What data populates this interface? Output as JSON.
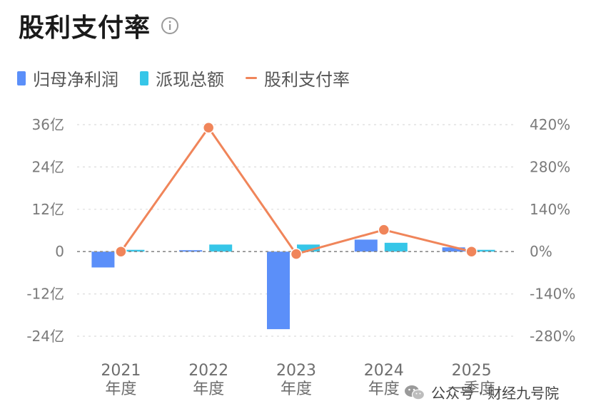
{
  "header": {
    "title": "股利支付率",
    "info_icon": "info-icon"
  },
  "legend": [
    {
      "label": "归母净利润",
      "color": "#5b8ff9",
      "shape": "bar"
    },
    {
      "label": "派现总额",
      "color": "#36c6e8",
      "shape": "bar"
    },
    {
      "label": "股利支付率",
      "color": "#f0855a",
      "shape": "line"
    }
  ],
  "chart_data": {
    "type": "bar",
    "categories": [
      "2021\n年度",
      "2022\n年度",
      "2023\n年度",
      "2024\n年度",
      "2025\n一季度"
    ],
    "series": [
      {
        "name": "归母净利润",
        "type": "bar",
        "axis": "left",
        "values": [
          -4.5,
          0.4,
          -22,
          3.4,
          1.2
        ]
      },
      {
        "name": "派现总额",
        "type": "bar",
        "axis": "left",
        "values": [
          0.5,
          2.0,
          2.0,
          2.5,
          0.5
        ]
      },
      {
        "name": "股利支付率",
        "type": "line",
        "axis": "right",
        "values": [
          0,
          410,
          -8,
          72,
          0
        ]
      }
    ],
    "y_left": {
      "ticks": [
        "36亿",
        "24亿",
        "12亿",
        "0",
        "-12亿",
        "-24亿"
      ],
      "tick_values": [
        36,
        24,
        12,
        0,
        -12,
        -24
      ],
      "range": [
        -24,
        36
      ]
    },
    "y_right": {
      "ticks": [
        "420%",
        "280%",
        "140%",
        "0%",
        "-140%",
        "-280%"
      ],
      "tick_values": [
        420,
        280,
        140,
        0,
        -140,
        -280
      ],
      "range": [
        -280,
        420
      ]
    },
    "grid": true
  },
  "colors": {
    "bar1": "#5b8ff9",
    "bar2": "#36c6e8",
    "line": "#f0855a",
    "grid": "#dcdcdc",
    "zero": "#8a8a8a"
  },
  "watermark": {
    "text": "公众号 · 财经九号院",
    "icon": "wechat-icon"
  }
}
